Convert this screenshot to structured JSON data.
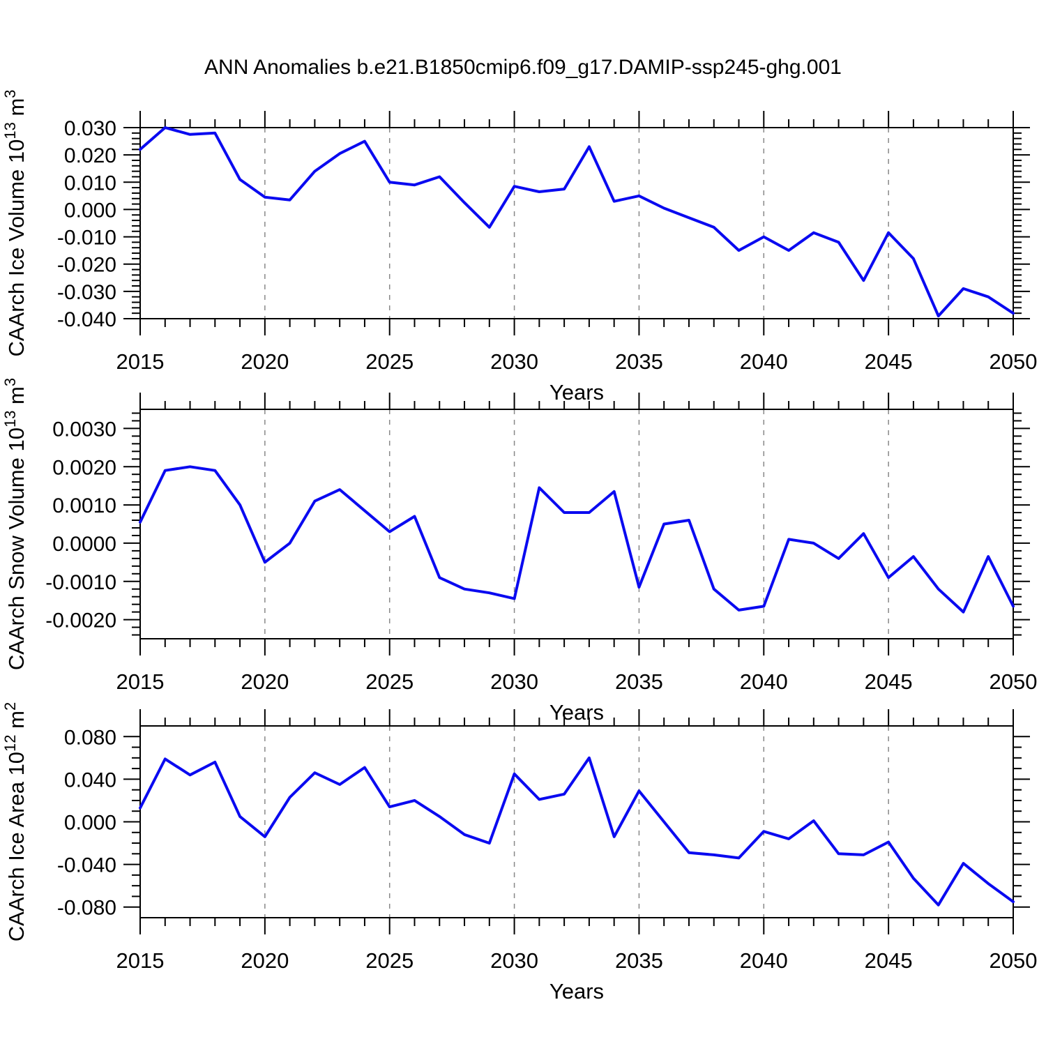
{
  "title": "ANN Anomalies b.e21.B1850cmip6.f09_g17.DAMIP-ssp245-ghg.001",
  "line_color": "#0a0af0",
  "gridline_color": "#888888",
  "frame_color": "#000000",
  "chart_data": [
    {
      "id": "ice-volume",
      "type": "line",
      "ylabel": "CAArch Ice Volume 10^13 m^3",
      "ylabel_segments": [
        {
          "t": "CAArch Ice Volume 10",
          "sup": false
        },
        {
          "t": "13",
          "sup": true
        },
        {
          "t": " m",
          "sup": false
        },
        {
          "t": "3",
          "sup": true
        }
      ],
      "xlabel": "Years",
      "x_start": 2015,
      "x_end": 2050,
      "xticks": [
        2015,
        2020,
        2025,
        2030,
        2035,
        2040,
        2045,
        2050
      ],
      "x_minor_step": 1,
      "gridlines_x": [
        2020,
        2025,
        2030,
        2035,
        2040,
        2045
      ],
      "ylim": [
        -0.04,
        0.03
      ],
      "yticks": [
        0.03,
        0.02,
        0.01,
        0.0,
        -0.01,
        -0.02,
        -0.03,
        -0.04
      ],
      "ytick_minor_step": 0.002,
      "ydecimals": 3,
      "years": [
        2015,
        2016,
        2017,
        2018,
        2019,
        2020,
        2021,
        2022,
        2023,
        2024,
        2025,
        2026,
        2027,
        2028,
        2029,
        2030,
        2031,
        2032,
        2033,
        2034,
        2035,
        2036,
        2037,
        2038,
        2039,
        2040,
        2041,
        2042,
        2043,
        2044,
        2045,
        2046,
        2047,
        2048,
        2049,
        2050
      ],
      "values": [
        0.022,
        0.03,
        0.0275,
        0.028,
        0.011,
        0.0045,
        0.0035,
        0.014,
        0.0205,
        0.025,
        0.01,
        0.009,
        0.012,
        0.0025,
        -0.0065,
        0.0085,
        0.0065,
        0.0075,
        0.023,
        0.003,
        0.005,
        0.0005,
        -0.003,
        -0.0065,
        -0.015,
        -0.01,
        -0.015,
        -0.0085,
        -0.012,
        -0.026,
        -0.0085,
        -0.018,
        -0.039,
        -0.029,
        -0.032,
        -0.038
      ]
    },
    {
      "id": "snow-volume",
      "type": "line",
      "ylabel": "CAArch Snow Volume 10^13 m^3",
      "ylabel_segments": [
        {
          "t": "CAArch Snow Volume 10",
          "sup": false
        },
        {
          "t": "13",
          "sup": true
        },
        {
          "t": " m",
          "sup": false
        },
        {
          "t": "3",
          "sup": true
        }
      ],
      "xlabel": "Years",
      "x_start": 2015,
      "x_end": 2050,
      "xticks": [
        2015,
        2020,
        2025,
        2030,
        2035,
        2040,
        2045,
        2050
      ],
      "x_minor_step": 1,
      "gridlines_x": [
        2020,
        2025,
        2030,
        2035,
        2040,
        2045
      ],
      "ylim": [
        -0.0025,
        0.0035
      ],
      "yticks": [
        0.003,
        0.002,
        0.001,
        0.0,
        -0.001,
        -0.002
      ],
      "ytick_minor_step": 0.0002,
      "ydecimals": 4,
      "years": [
        2015,
        2016,
        2017,
        2018,
        2019,
        2020,
        2021,
        2022,
        2023,
        2024,
        2025,
        2026,
        2027,
        2028,
        2029,
        2030,
        2031,
        2032,
        2033,
        2034,
        2035,
        2036,
        2037,
        2038,
        2039,
        2040,
        2041,
        2042,
        2043,
        2044,
        2045,
        2046,
        2047,
        2048,
        2049,
        2050
      ],
      "values": [
        0.00055,
        0.0019,
        0.002,
        0.0019,
        0.001,
        -0.0005,
        0.0,
        0.0011,
        0.0014,
        0.00085,
        0.0003,
        0.0007,
        -0.0009,
        -0.0012,
        -0.0013,
        -0.00145,
        0.00145,
        0.0008,
        0.0008,
        0.00135,
        -0.00115,
        0.0005,
        0.0006,
        -0.0012,
        -0.00175,
        -0.00165,
        0.0001,
        0.0,
        -0.0004,
        0.00025,
        -0.0009,
        -0.00035,
        -0.0012,
        -0.0018,
        -0.00035,
        -0.00165
      ]
    },
    {
      "id": "ice-area",
      "type": "line",
      "ylabel": "CAArch Ice Area 10^12 m^2",
      "ylabel_segments": [
        {
          "t": "CAArch Ice Area 10",
          "sup": false
        },
        {
          "t": "12",
          "sup": true
        },
        {
          "t": " m",
          "sup": false
        },
        {
          "t": "2",
          "sup": true
        }
      ],
      "xlabel": "Years",
      "x_start": 2015,
      "x_end": 2050,
      "xticks": [
        2015,
        2020,
        2025,
        2030,
        2035,
        2040,
        2045,
        2050
      ],
      "x_minor_step": 1,
      "gridlines_x": [
        2020,
        2025,
        2030,
        2035,
        2040,
        2045
      ],
      "ylim": [
        -0.09,
        0.09
      ],
      "yticks": [
        0.08,
        0.04,
        0.0,
        -0.04,
        -0.08
      ],
      "ytick_minor_step": 0.01,
      "ydecimals": 3,
      "years": [
        2015,
        2016,
        2017,
        2018,
        2019,
        2020,
        2021,
        2022,
        2023,
        2024,
        2025,
        2026,
        2027,
        2028,
        2029,
        2030,
        2031,
        2032,
        2033,
        2034,
        2035,
        2036,
        2037,
        2038,
        2039,
        2040,
        2041,
        2042,
        2043,
        2044,
        2045,
        2046,
        2047,
        2048,
        2049,
        2050
      ],
      "values": [
        0.013,
        0.059,
        0.044,
        0.056,
        0.005,
        -0.014,
        0.023,
        0.046,
        0.035,
        0.051,
        0.014,
        0.02,
        0.005,
        -0.012,
        -0.02,
        0.045,
        0.021,
        0.026,
        0.06,
        -0.014,
        0.029,
        0.0,
        -0.029,
        -0.031,
        -0.034,
        -0.009,
        -0.016,
        0.001,
        -0.03,
        -0.031,
        -0.019,
        -0.053,
        -0.078,
        -0.039,
        -0.058,
        -0.075
      ]
    }
  ]
}
